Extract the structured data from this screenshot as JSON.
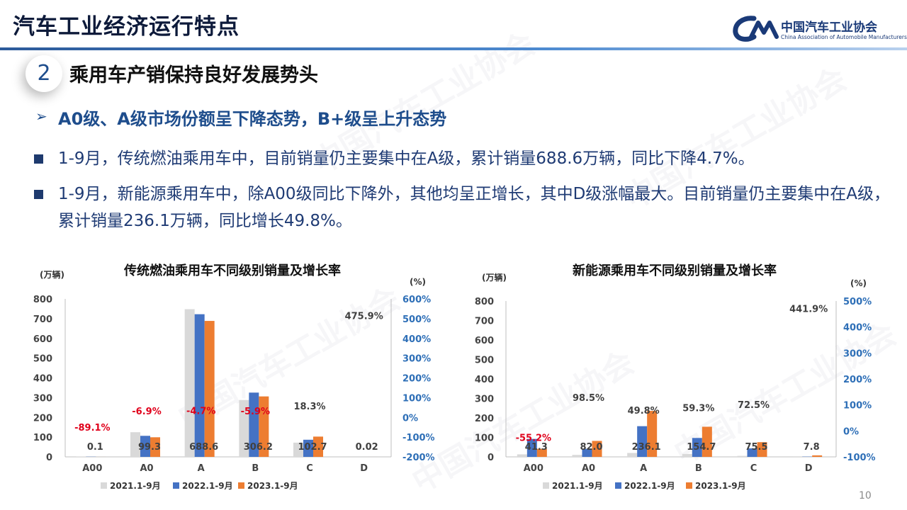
{
  "header": {
    "title": "汽车工业经济运行特点",
    "logo_cn": "中国汽车工业协会",
    "logo_en": "China Association of Automobile Manufacturers"
  },
  "section": {
    "number": "2",
    "title": "乘用车产销保持良好发展势头"
  },
  "subheading": {
    "arrow": "➢",
    "text": "A0级、A级市场份额呈下降态势，B+级呈上升态势"
  },
  "bullets": [
    "1-9月，传统燃油乘用车中，目前销量仍主要集中在A级，累计销量688.6万辆，同比下降4.7%。",
    "1-9月，新能源乘用车中，除A00级同比下降外，其他均呈正增长，其中D级涨幅最大。目前销量仍主要集中在A级，累计销量236.1万辆，同比增长49.8%。"
  ],
  "page_number": "10",
  "watermark": "中国汽车工业协会",
  "colors": {
    "s2021": "#d9d9d9",
    "s2022": "#4472c4",
    "s2023": "#ed7d31",
    "negative": "#e0001b",
    "axis_right": "#2e6fb7",
    "label": "#404040"
  },
  "chart_data": [
    {
      "type": "bar",
      "title": "传统燃油乘用车不同级别销量及增长率",
      "ylabel": "(万辆)",
      "y2label": "(%)",
      "categories": [
        "A00",
        "A0",
        "A",
        "B",
        "C",
        "D"
      ],
      "ylim": [
        0,
        800
      ],
      "yticks": [
        "0",
        "100",
        "200",
        "300",
        "400",
        "500",
        "600",
        "700",
        "800"
      ],
      "y2lim": [
        -200,
        600
      ],
      "y2ticks": [
        "-200%",
        "-100%",
        "0%",
        "100%",
        "200%",
        "300%",
        "400%",
        "500%",
        "600%"
      ],
      "series": [
        {
          "name": "2021.1-9月",
          "values": [
            0.9,
            125,
            748,
            288,
            72,
            0.01
          ]
        },
        {
          "name": "2022.1-9月",
          "values": [
            0.9,
            106.6,
            722.5,
            325.5,
            86.8,
            0.004
          ]
        },
        {
          "name": "2023.1-9月",
          "values": [
            0.1,
            99.3,
            688.6,
            306.2,
            102.7,
            0.02
          ]
        }
      ],
      "value_labels": [
        "0.1",
        "99.3",
        "688.6",
        "306.2",
        "102.7",
        "0.02"
      ],
      "growth": [
        -89.1,
        -6.9,
        -4.7,
        -5.9,
        18.3,
        475.9
      ],
      "growth_labels": [
        "-89.1%",
        "-6.9%",
        "-4.7%",
        "-5.9%",
        "18.3%",
        "475.9%"
      ],
      "legend": "bottom"
    },
    {
      "type": "bar",
      "title": "新能源乘用车不同级别销量及增长率",
      "ylabel": "(万辆)",
      "y2label": "(%)",
      "categories": [
        "A00",
        "A0",
        "A",
        "B",
        "C",
        "D"
      ],
      "ylim": [
        0,
        800
      ],
      "yticks": [
        "0",
        "100",
        "200",
        "300",
        "400",
        "500",
        "600",
        "700",
        "800"
      ],
      "y2lim": [
        -100,
        500
      ],
      "y2ticks": [
        "-100%",
        "0%",
        "100%",
        "200%",
        "300%",
        "400%",
        "500%"
      ],
      "series": [
        {
          "name": "2021.1-9月",
          "values": [
            13,
            10,
            20,
            15,
            5,
            0.3
          ]
        },
        {
          "name": "2022.1-9月",
          "values": [
            92.2,
            41.3,
            157.6,
            97.1,
            43.8,
            1.4
          ]
        },
        {
          "name": "2023.1-9月",
          "values": [
            41.3,
            82.0,
            236.1,
            154.7,
            75.5,
            7.8
          ]
        }
      ],
      "value_labels": [
        "41.3",
        "82.0",
        "236.1",
        "154.7",
        "75.5",
        "7.8"
      ],
      "growth": [
        -55.2,
        98.5,
        49.8,
        59.3,
        72.5,
        441.9
      ],
      "growth_labels": [
        "-55.2%",
        "98.5%",
        "49.8%",
        "59.3%",
        "72.5%",
        "441.9%"
      ],
      "legend": "bottom"
    }
  ]
}
